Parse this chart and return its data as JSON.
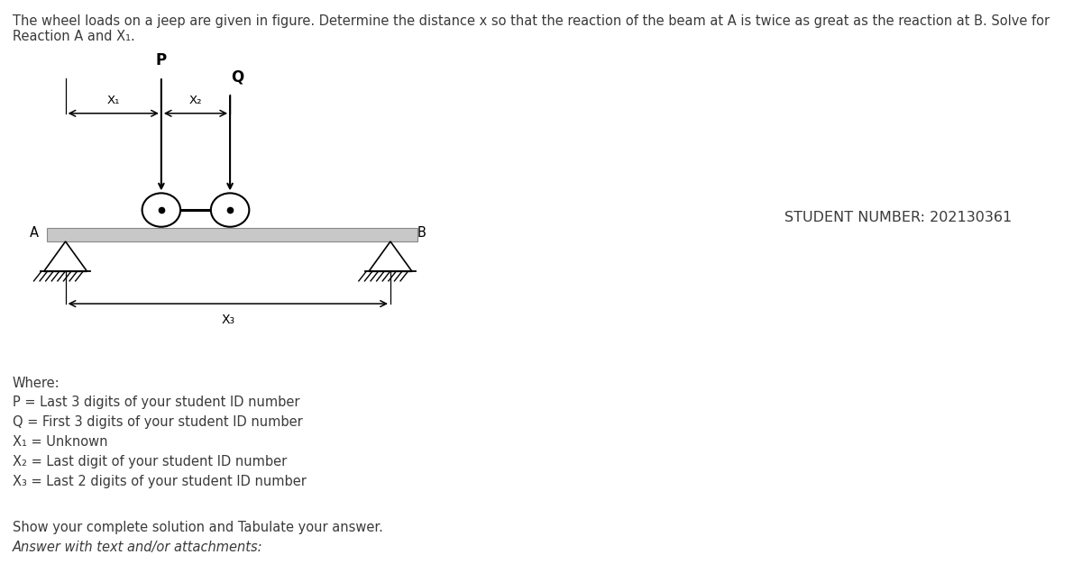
{
  "title_line1": "The wheel loads on a jeep are given in figure. Determine the distance x so that the reaction of the beam at A is twice as great as the reaction at B. Solve for",
  "title_line2": "Reaction A and X₁.",
  "student_number_label": "STUDENT NUMBER: 202130361",
  "where_label": "Where:",
  "lines": [
    "P = Last 3 digits of your student ID number",
    "Q = First 3 digits of your student ID number",
    "X₁ = Unknown",
    "X₂ = Last digit of your student ID number",
    "X₃ = Last 2 digits of your student ID number"
  ],
  "bottom_lines": [
    "Show your complete solution and Tabulate your answer.",
    "Answer with text and/or attachments:"
  ],
  "bg_color": "#ffffff",
  "text_color": "#3a3a3a",
  "fig_width": 12.0,
  "fig_height": 6.36
}
